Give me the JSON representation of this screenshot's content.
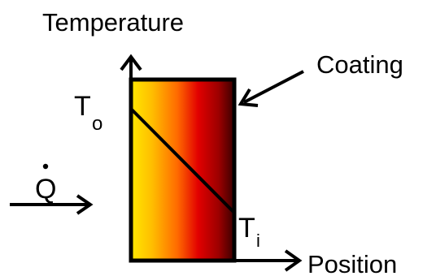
{
  "labels": {
    "y_axis": "Temperature",
    "x_axis": "Position",
    "coating": "Coating",
    "heat_flow": "Q",
    "outer_temp": {
      "symbol": "T",
      "subscript": "o"
    },
    "inner_temp": {
      "symbol": "T",
      "subscript": "i"
    }
  },
  "colors": {
    "gradient": [
      "#ffe800",
      "#ffbf00",
      "#ff6a00",
      "#e20000",
      "#9c0000",
      "#3a0000"
    ],
    "stroke": "#000000",
    "background": "#ffffff"
  }
}
